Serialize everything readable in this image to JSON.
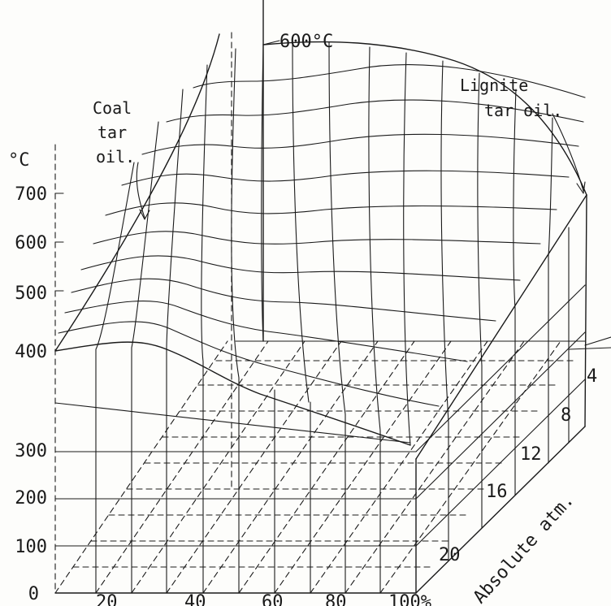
{
  "yaxis": {
    "unit": "°C",
    "ticks": [
      "0",
      "100",
      "200",
      "300",
      "400",
      "500",
      "600",
      "700"
    ]
  },
  "xaxis": {
    "ticks": [
      "20",
      "40",
      "60",
      "80",
      "100%"
    ]
  },
  "zaxis": {
    "label": "Absolute atm.",
    "ticks": [
      "4",
      "8",
      "12",
      "16",
      "20"
    ]
  },
  "annotations": {
    "coal": [
      "Coal",
      "tar",
      "oil."
    ],
    "lignite": [
      "Lignite",
      "tar oil."
    ],
    "top_temp": "600°C"
  }
}
